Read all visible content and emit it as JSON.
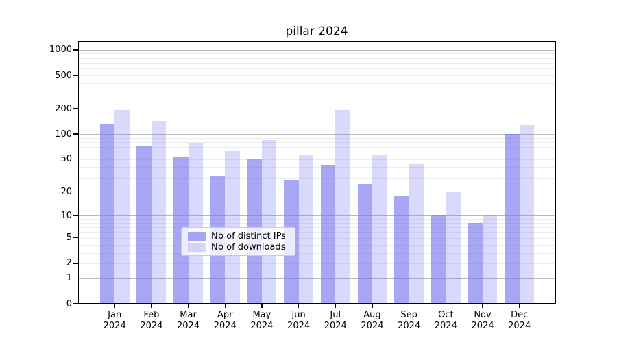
{
  "title": "pillar 2024",
  "chart_data": {
    "type": "bar",
    "title": "pillar 2024",
    "categories": [
      "Jan 2024",
      "Feb 2024",
      "Mar 2024",
      "Apr 2024",
      "May 2024",
      "Jun 2024",
      "Jul 2024",
      "Aug 2024",
      "Sep 2024",
      "Oct 2024",
      "Nov 2024",
      "Dec 2024"
    ],
    "month_labels": [
      "Jan",
      "Feb",
      "Mar",
      "Apr",
      "May",
      "Jun",
      "Jul",
      "Aug",
      "Sep",
      "Oct",
      "Nov",
      "Dec"
    ],
    "year_label": "2024",
    "series": [
      {
        "name": "Nb of distinct IPs",
        "color": "rgba(120,120,240,0.65)",
        "values": [
          130,
          72,
          54,
          31,
          51,
          28,
          43,
          25,
          18,
          10,
          8,
          100
        ]
      },
      {
        "name": "Nb of downloads",
        "color": "rgba(120,120,240,0.28)",
        "values": [
          193,
          143,
          79,
          62,
          86,
          57,
          193,
          57,
          44,
          20,
          10,
          128
        ]
      }
    ],
    "xlabel": "",
    "ylabel": "",
    "yscale": "log1p",
    "yticks": [
      0,
      1,
      2,
      5,
      10,
      20,
      50,
      100,
      200,
      500,
      1000
    ],
    "ylim": [
      0,
      1270
    ],
    "grid": true,
    "legend_position": "lower center",
    "colors": {
      "major_grid": "#b9b9b9",
      "minor_grid": "#ececec",
      "axis": "#000000",
      "bar_base": "#7878f0",
      "legend_border": "#cccccc"
    }
  }
}
